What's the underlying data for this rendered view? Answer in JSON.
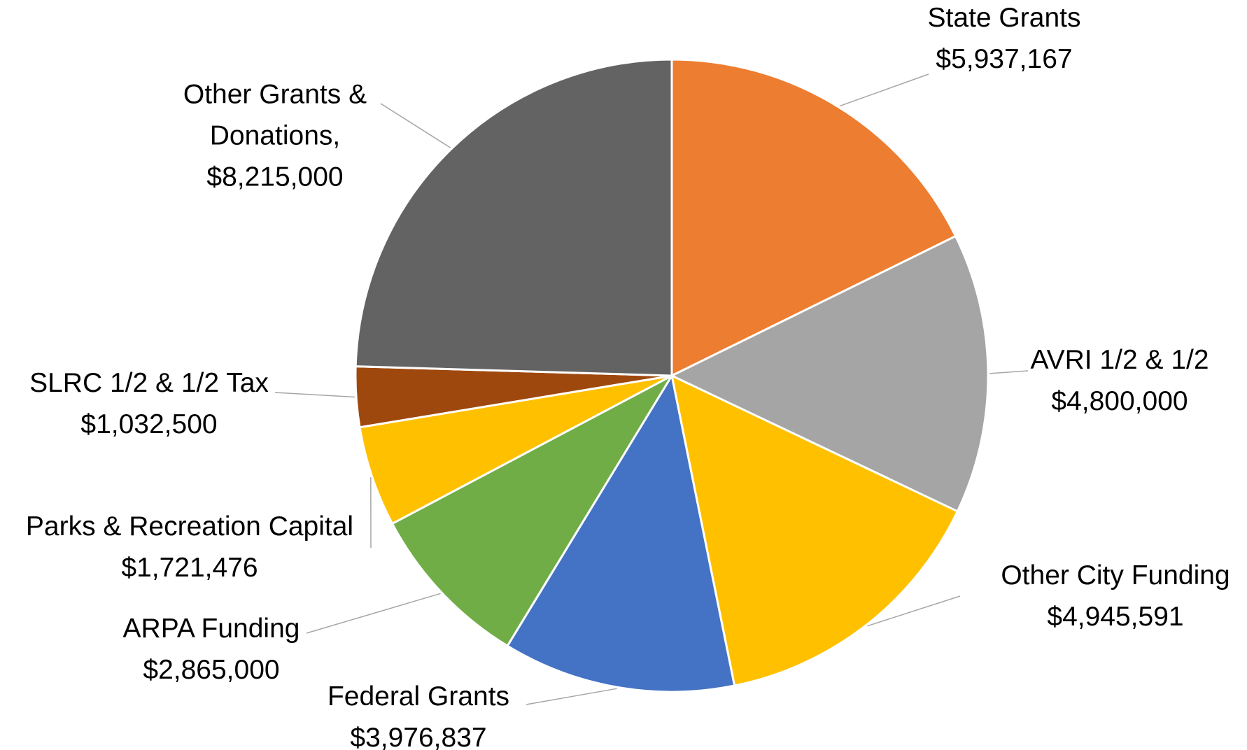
{
  "chart_data": {
    "type": "pie",
    "categories": [
      "State Grants",
      "AVRI 1/2 & 1/2",
      "Other City Funding",
      "Federal Grants",
      "ARPA Funding",
      "Parks & Recreation Capital",
      "SLRC 1/2 & 1/2 Tax",
      "Other Grants & Donations,"
    ],
    "values": [
      5937167,
      4800000,
      4945591,
      3976837,
      2865000,
      1721476,
      1032500,
      8215000
    ],
    "value_labels": [
      "$5,937,167",
      "$4,800,000",
      "$4,945,591",
      "$3,976,837",
      "$2,865,000",
      "$1,721,476",
      "$1,032,500",
      "$8,215,000"
    ],
    "colors": [
      "#ed7d31",
      "#a5a5a5",
      "#ffc000",
      "#4472c4",
      "#70ad47",
      "#ffc000",
      "#9e480e",
      "#636363"
    ]
  }
}
